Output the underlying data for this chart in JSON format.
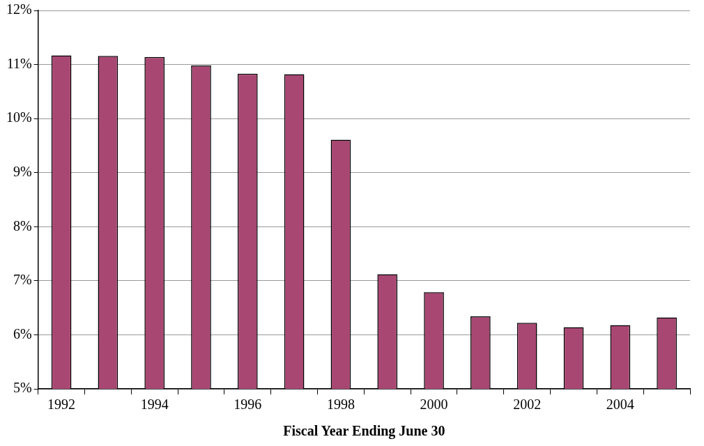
{
  "chart_data": {
    "type": "bar",
    "xlabel": "Fiscal Year Ending June 30",
    "categories": [
      "1992",
      null,
      "1994",
      null,
      "1996",
      null,
      "1998",
      null,
      "2000",
      null,
      "2002",
      null,
      "2004",
      null
    ],
    "values": [
      11.17,
      11.16,
      11.14,
      10.98,
      10.83,
      10.82,
      9.61,
      7.12,
      6.79,
      6.34,
      6.22,
      6.14,
      6.18,
      6.32
    ],
    "color": "#a84872",
    "ylim": [
      5,
      12
    ],
    "yticks": [
      {
        "value": 5,
        "label": "5%"
      },
      {
        "value": 6,
        "label": "6%"
      },
      {
        "value": 7,
        "label": "7%"
      },
      {
        "value": 8,
        "label": "8%"
      },
      {
        "value": 9,
        "label": "9%"
      },
      {
        "value": 10,
        "label": "10%"
      },
      {
        "value": 11,
        "label": "11%"
      },
      {
        "value": 12,
        "label": "12%"
      }
    ],
    "grid": "y",
    "legend": false
  }
}
